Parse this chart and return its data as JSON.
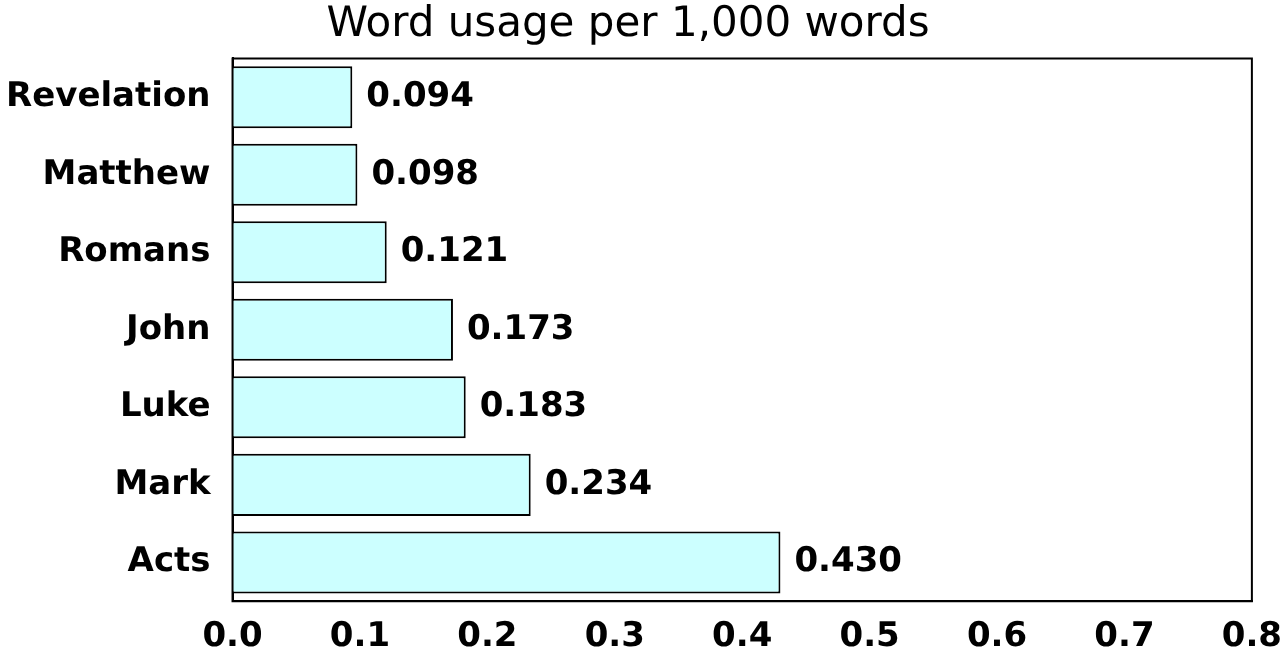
{
  "chart_data": {
    "type": "bar",
    "orientation": "horizontal",
    "title": "Word usage per 1,000 words",
    "categories": [
      "Revelation",
      "Matthew",
      "Romans",
      "John",
      "Luke",
      "Mark",
      "Acts"
    ],
    "values": [
      0.094,
      0.098,
      0.121,
      0.173,
      0.183,
      0.234,
      0.43
    ],
    "value_labels": [
      "0.094",
      "0.098",
      "0.121",
      "0.173",
      "0.183",
      "0.234",
      "0.430"
    ],
    "color": "#ccffff",
    "xlim": [
      0,
      0.8
    ],
    "xticks": [
      {
        "value": 0,
        "label": "0.0"
      },
      {
        "value": 0.1,
        "label": "0.1"
      },
      {
        "value": 0.2,
        "label": "0.2"
      },
      {
        "value": 0.3,
        "label": "0.3"
      },
      {
        "value": 0.4,
        "label": "0.4"
      },
      {
        "value": 0.5,
        "label": "0.5"
      },
      {
        "value": 0.6,
        "label": "0.6"
      },
      {
        "value": 0.7,
        "label": "0.7"
      },
      {
        "value": 0.8,
        "label": "0.8"
      }
    ],
    "grid": false,
    "legend": false
  }
}
